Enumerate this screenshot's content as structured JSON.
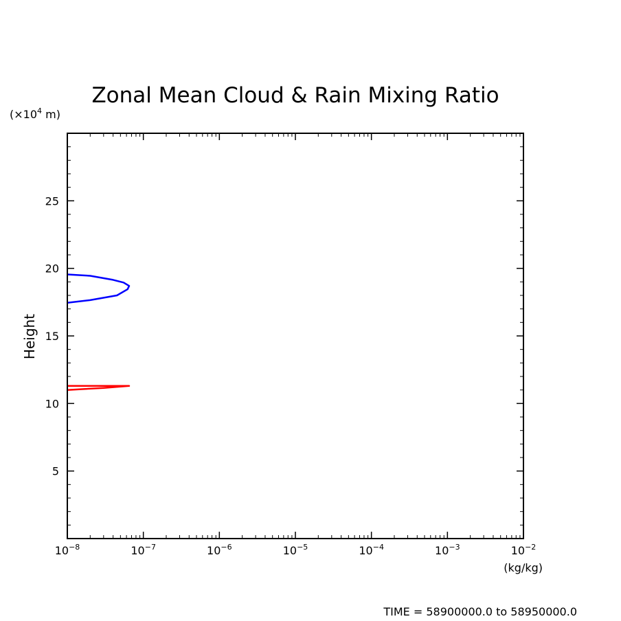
{
  "chart_data": {
    "type": "line",
    "title": "Zonal Mean Cloud & Rain Mixing Ratio",
    "ylabel": "Height",
    "yunit": "(×10⁴ m)",
    "xunit": "(kg/kg)",
    "xscale": "log",
    "xlim": [
      1e-08,
      0.01
    ],
    "ylim": [
      0,
      30
    ],
    "x_ticks": [
      {
        "base": "10",
        "exp": "−8"
      },
      {
        "base": "10",
        "exp": "−7"
      },
      {
        "base": "10",
        "exp": "−6"
      },
      {
        "base": "10",
        "exp": "−5"
      },
      {
        "base": "10",
        "exp": "−4"
      },
      {
        "base": "10",
        "exp": "−3"
      },
      {
        "base": "10",
        "exp": "−2"
      }
    ],
    "y_ticks": [
      "5",
      "10",
      "15",
      "20",
      "25"
    ],
    "y_tick_values": [
      5,
      10,
      15,
      20,
      25
    ],
    "grid": false,
    "series": [
      {
        "color": "#0000ff",
        "x": [
          1e-08,
          2e-08,
          4e-08,
          5.5e-08,
          6.5e-08,
          6.2e-08,
          4.5e-08,
          2e-08,
          1e-08
        ],
        "y": [
          19.55,
          19.45,
          19.15,
          18.95,
          18.7,
          18.45,
          18.0,
          17.65,
          17.45
        ]
      },
      {
        "color": "#ff0000",
        "x": [
          1e-08,
          3e-08,
          6.5e-08,
          3e-08,
          1e-08
        ],
        "y": [
          11.0,
          11.15,
          11.3,
          11.3,
          11.3
        ]
      }
    ]
  },
  "footer": {
    "time_text": "TIME = 58900000.0 to 58950000.0"
  }
}
